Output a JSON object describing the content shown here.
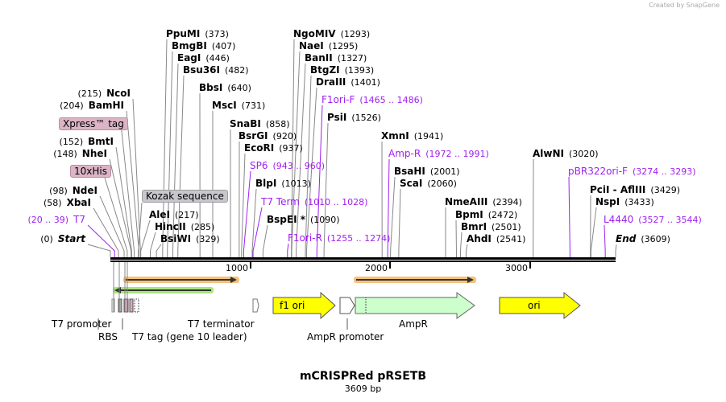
{
  "credit": "Created by SnapGene",
  "title": "mCRISPRed pRSETB",
  "length_label": "3609 bp",
  "length_bp": 3609,
  "ruler": [
    "1000",
    "2000",
    "3000"
  ],
  "left_sites": [
    {
      "name": "Start",
      "pos": "(0)",
      "site": 0,
      "italic": true
    },
    {
      "name": "T7",
      "pos": "(20 .. 39)",
      "site": 30,
      "primer": true
    },
    {
      "name": "XbaI",
      "pos": "(58)",
      "site": 58
    },
    {
      "name": "NdeI",
      "pos": "(98)",
      "site": 98
    },
    {
      "name": "NheI",
      "pos": "(148)",
      "site": 148
    },
    {
      "name": "BmtI",
      "pos": "(152)",
      "site": 152
    },
    {
      "name": "BamHI",
      "pos": "(204)",
      "site": 204
    },
    {
      "name": "NcoI",
      "pos": "(215)",
      "site": 215
    }
  ],
  "right_sites": [
    {
      "name": "PpuMI",
      "pos": "(373)",
      "site": 373
    },
    {
      "name": "BmgBI",
      "pos": "(407)",
      "site": 407
    },
    {
      "name": "EagI",
      "pos": "(446)",
      "site": 446
    },
    {
      "name": "Bsu36I",
      "pos": "(482)",
      "site": 482
    },
    {
      "name": "BbsI",
      "pos": "(640)",
      "site": 640
    },
    {
      "name": "MscI",
      "pos": "(731)",
      "site": 731
    },
    {
      "name": "SnaBI",
      "pos": "(858)",
      "site": 858
    },
    {
      "name": "BsrGI",
      "pos": "(920)",
      "site": 920
    },
    {
      "name": "EcoRI",
      "pos": "(937)",
      "site": 937
    },
    {
      "name": "SP6",
      "pos": "(943 .. 960)",
      "site": 952,
      "primer": true
    },
    {
      "name": "BlpI",
      "pos": "(1013)",
      "site": 1013
    },
    {
      "name": "T7 Term",
      "pos": "(1010 .. 1028)",
      "site": 1019,
      "primer": true
    },
    {
      "name": "BspEI *",
      "pos": "(1090)",
      "site": 1090
    },
    {
      "name": "F1ori-R",
      "pos": "(1255 .. 1274)",
      "site": 1265,
      "primer": true
    },
    {
      "name": "AleI",
      "pos": "(217)",
      "site": 217
    },
    {
      "name": "HincII",
      "pos": "(285)",
      "site": 285
    },
    {
      "name": "BsiWI",
      "pos": "(329)",
      "site": 329
    },
    {
      "name": "NgoMIV",
      "pos": "(1293)",
      "site": 1293
    },
    {
      "name": "NaeI",
      "pos": "(1295)",
      "site": 1295
    },
    {
      "name": "BanII",
      "pos": "(1327)",
      "site": 1327
    },
    {
      "name": "BtgZI",
      "pos": "(1393)",
      "site": 1393
    },
    {
      "name": "DraIII",
      "pos": "(1401)",
      "site": 1401
    },
    {
      "name": "F1ori-F",
      "pos": "(1465 .. 1486)",
      "site": 1475,
      "primer": true
    },
    {
      "name": "PsiI",
      "pos": "(1526)",
      "site": 1526
    },
    {
      "name": "XmnI",
      "pos": "(1941)",
      "site": 1941
    },
    {
      "name": "Amp-R",
      "pos": "(1972 .. 1991)",
      "site": 1981,
      "primer": true
    },
    {
      "name": "BsaHI",
      "pos": "(2001)",
      "site": 2001
    },
    {
      "name": "ScaI",
      "pos": "(2060)",
      "site": 2060
    },
    {
      "name": "NmeAIII",
      "pos": "(2394)",
      "site": 2394
    },
    {
      "name": "BpmI",
      "pos": "(2472)",
      "site": 2472
    },
    {
      "name": "BmrI",
      "pos": "(2501)",
      "site": 2501
    },
    {
      "name": "AhdI",
      "pos": "(2541)",
      "site": 2541
    },
    {
      "name": "AlwNI",
      "pos": "(3020)",
      "site": 3020
    },
    {
      "name": "pBR322ori-F",
      "pos": "(3274 .. 3293)",
      "site": 3283,
      "primer": true
    },
    {
      "name": "PciI - AflIII",
      "pos": "(3429)",
      "site": 3429
    },
    {
      "name": "NspI",
      "pos": "(3433)",
      "site": 3433
    },
    {
      "name": "L4440",
      "pos": "(3527 .. 3544)",
      "site": 3535,
      "primer": true
    },
    {
      "name": "End",
      "pos": "(3609)",
      "site": 3609,
      "italic": true
    }
  ],
  "feature_boxes": [
    {
      "label": "Xpress™ tag",
      "site": 170,
      "color": "pink"
    },
    {
      "label": "10xHis",
      "site": 120,
      "color": "pink"
    },
    {
      "label": "Kozak sequence",
      "site": 200,
      "color": "gray"
    }
  ],
  "features": {
    "f1_ori": "f1 ori",
    "ori": "ori",
    "t7_promoter": "T7 promoter",
    "rbs": "RBS",
    "t7_tag": "T7 tag (gene 10 leader)",
    "t7_terminator": "T7 terminator",
    "ampr": "AmpR",
    "ampr_promoter": "AmpR promoter"
  },
  "colors": {
    "primer": "#a020f0",
    "orf": "#f5c27a",
    "orf_left": "#a8e67a",
    "yellow": "#ffff00",
    "ampr": "#ccffcc"
  }
}
